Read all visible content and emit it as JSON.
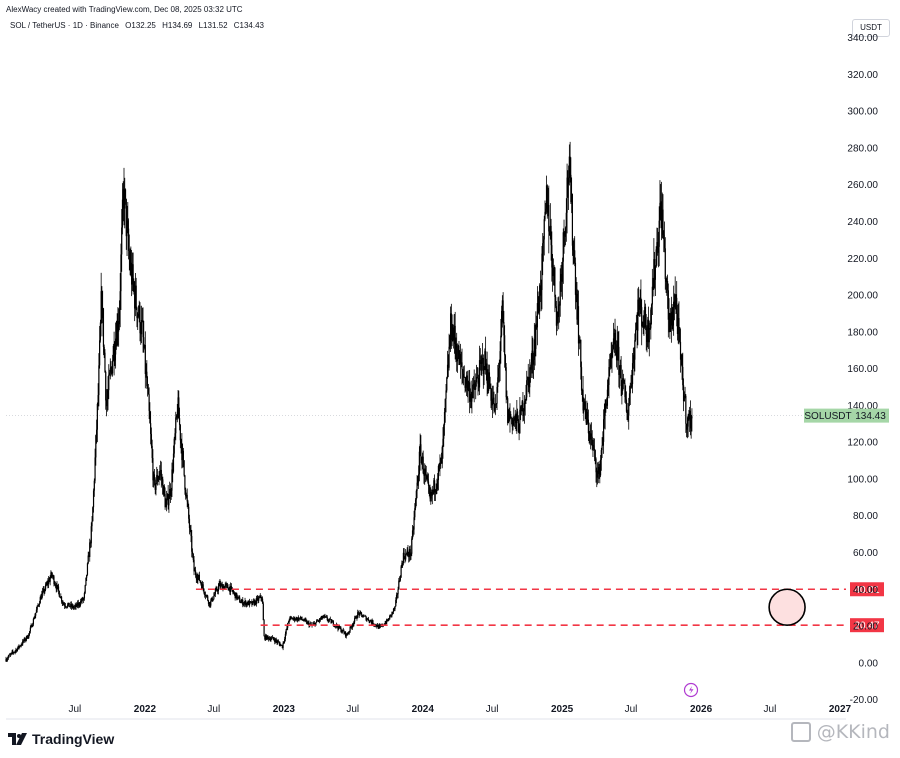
{
  "header": {
    "created_by": "AlexWacy created with TradingView.com, Dec 08, 2025 03:32 UTC",
    "symbol_line": "SOL / TetherUS · 1D · Binance",
    "open": "O132.25",
    "high": "H134.69",
    "low": "L131.52",
    "close": "C134.43",
    "currency": "USDT"
  },
  "footer": {
    "logo_text": "TradingView",
    "watermark": "@KKind"
  },
  "colors": {
    "candle": "#000000",
    "level_line": "#f23645",
    "price_label": "#a5d6a7",
    "circle_fill": "#fde0e0"
  },
  "icons": [
    "tradingview-logo-icon",
    "lightning-icon",
    "watermark-icon"
  ],
  "chart_data": {
    "type": "candlestick",
    "symbol": "SOLUSDT",
    "last_price": "134.43",
    "y_axis": {
      "min": -30,
      "max": 355,
      "ticks": [
        "340.00",
        "320.00",
        "300.00",
        "280.00",
        "260.00",
        "240.00",
        "220.00",
        "200.00",
        "180.00",
        "160.00",
        "140.00",
        "120.00",
        "100.00",
        "80.00",
        "60.00",
        "40.00",
        "20.00",
        "0.00",
        "-20.00"
      ]
    },
    "x_axis": {
      "ticks": [
        {
          "label": "Jul",
          "date": "2021-07-01",
          "bold": false
        },
        {
          "label": "2022",
          "date": "2022-01-01",
          "bold": true
        },
        {
          "label": "Jul",
          "date": "2022-07-01",
          "bold": false
        },
        {
          "label": "2023",
          "date": "2023-01-01",
          "bold": true
        },
        {
          "label": "Jul",
          "date": "2023-07-01",
          "bold": false
        },
        {
          "label": "2024",
          "date": "2024-01-01",
          "bold": true
        },
        {
          "label": "Jul",
          "date": "2024-07-01",
          "bold": false
        },
        {
          "label": "2025",
          "date": "2025-01-01",
          "bold": true
        },
        {
          "label": "Jul",
          "date": "2025-07-01",
          "bold": false
        },
        {
          "label": "2026",
          "date": "2026-01-01",
          "bold": true
        },
        {
          "label": "Jul",
          "date": "2026-07-01",
          "bold": false
        },
        {
          "label": "2027",
          "date": "2027-01-01",
          "bold": true
        }
      ]
    },
    "levels": [
      {
        "value": 40.01,
        "label": "40.01",
        "start_date": "2022-05-15"
      },
      {
        "value": 20.47,
        "label": "20.47",
        "start_date": "2022-11-01"
      }
    ],
    "highlight": {
      "date": "2026-08-15",
      "low": 20.47,
      "high": 40.01
    },
    "price_path": [
      [
        "2021-01-01",
        2
      ],
      [
        "2021-02-01",
        8
      ],
      [
        "2021-03-01",
        15
      ],
      [
        "2021-04-01",
        35
      ],
      [
        "2021-05-01",
        48
      ],
      [
        "2021-06-01",
        32
      ],
      [
        "2021-07-01",
        30
      ],
      [
        "2021-07-25",
        35
      ],
      [
        "2021-08-15",
        75
      ],
      [
        "2021-09-01",
        150
      ],
      [
        "2021-09-09",
        200
      ],
      [
        "2021-09-22",
        140
      ],
      [
        "2021-10-10",
        170
      ],
      [
        "2021-10-25",
        190
      ],
      [
        "2021-11-06",
        258
      ],
      [
        "2021-11-20",
        220
      ],
      [
        "2021-12-05",
        200
      ],
      [
        "2021-12-25",
        180
      ],
      [
        "2022-01-10",
        140
      ],
      [
        "2022-01-25",
        95
      ],
      [
        "2022-02-10",
        105
      ],
      [
        "2022-02-25",
        85
      ],
      [
        "2022-03-10",
        95
      ],
      [
        "2022-03-28",
        140
      ],
      [
        "2022-04-15",
        100
      ],
      [
        "2022-05-10",
        50
      ],
      [
        "2022-05-25",
        45
      ],
      [
        "2022-06-20",
        32
      ],
      [
        "2022-07-15",
        42
      ],
      [
        "2022-08-10",
        41
      ],
      [
        "2022-09-10",
        33
      ],
      [
        "2022-10-10",
        32
      ],
      [
        "2022-11-05",
        36
      ],
      [
        "2022-11-10",
        14
      ],
      [
        "2022-12-05",
        13
      ],
      [
        "2022-12-28",
        9
      ],
      [
        "2023-01-15",
        24
      ],
      [
        "2023-02-15",
        24
      ],
      [
        "2023-03-15",
        20
      ],
      [
        "2023-04-15",
        25
      ],
      [
        "2023-05-15",
        21
      ],
      [
        "2023-06-15",
        15
      ],
      [
        "2023-07-15",
        27
      ],
      [
        "2023-08-15",
        23
      ],
      [
        "2023-09-10",
        19
      ],
      [
        "2023-10-01",
        23
      ],
      [
        "2023-10-20",
        30
      ],
      [
        "2023-11-10",
        58
      ],
      [
        "2023-12-01",
        60
      ],
      [
        "2023-12-25",
        115
      ],
      [
        "2024-01-20",
        88
      ],
      [
        "2024-02-20",
        110
      ],
      [
        "2024-03-15",
        185
      ],
      [
        "2024-04-10",
        160
      ],
      [
        "2024-05-10",
        145
      ],
      [
        "2024-06-10",
        165
      ],
      [
        "2024-07-10",
        135
      ],
      [
        "2024-07-28",
        190
      ],
      [
        "2024-08-10",
        135
      ],
      [
        "2024-09-10",
        130
      ],
      [
        "2024-10-15",
        165
      ],
      [
        "2024-11-10",
        215
      ],
      [
        "2024-11-22",
        255
      ],
      [
        "2024-12-20",
        185
      ],
      [
        "2025-01-18",
        270
      ],
      [
        "2025-01-30",
        230
      ],
      [
        "2025-02-25",
        140
      ],
      [
        "2025-03-15",
        125
      ],
      [
        "2025-04-07",
        100
      ],
      [
        "2025-04-30",
        150
      ],
      [
        "2025-05-20",
        175
      ],
      [
        "2025-06-22",
        135
      ],
      [
        "2025-07-20",
        195
      ],
      [
        "2025-08-15",
        180
      ],
      [
        "2025-09-18",
        250
      ],
      [
        "2025-10-10",
        180
      ],
      [
        "2025-10-25",
        200
      ],
      [
        "2025-11-10",
        160
      ],
      [
        "2025-11-25",
        130
      ],
      [
        "2025-12-08",
        134
      ]
    ]
  }
}
